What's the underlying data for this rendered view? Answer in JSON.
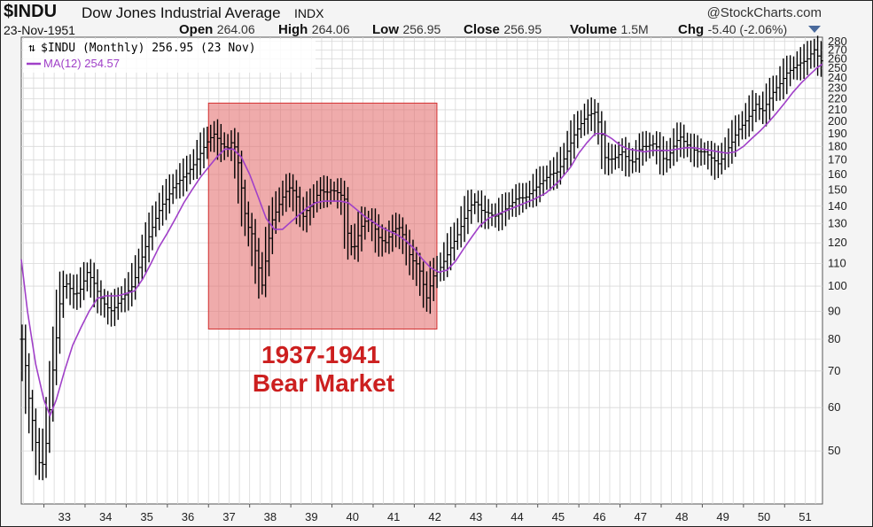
{
  "header": {
    "symbol": "$INDU",
    "name": "Dow Jones Industrial Average",
    "exchange": "INDX",
    "brand": "@StockCharts.com",
    "date": "23-Nov-1951",
    "quote": [
      {
        "label": "Open",
        "value": "264.06"
      },
      {
        "label": "High",
        "value": "264.06"
      },
      {
        "label": "Low",
        "value": "256.95"
      },
      {
        "label": "Close",
        "value": "256.95"
      },
      {
        "label": "Volume",
        "value": "1.5M"
      },
      {
        "label": "Chg",
        "value": "-5.40 (-2.06%)"
      }
    ]
  },
  "chart_data": {
    "type": "ohlc-bar",
    "scale": "log",
    "x_range": [
      1932.45,
      1951.92
    ],
    "ylim": [
      40,
      285
    ],
    "y_ticks": [
      50,
      60,
      70,
      80,
      90,
      100,
      110,
      120,
      130,
      140,
      150,
      160,
      170,
      180,
      190,
      200,
      210,
      220,
      230,
      240,
      250,
      260,
      270,
      280
    ],
    "x_ticks": [
      {
        "year": 1933,
        "label": "33"
      },
      {
        "year": 1934,
        "label": "34"
      },
      {
        "year": 1935,
        "label": "35"
      },
      {
        "year": 1936,
        "label": "36"
      },
      {
        "year": 1937,
        "label": "37"
      },
      {
        "year": 1938,
        "label": "38"
      },
      {
        "year": 1939,
        "label": "39"
      },
      {
        "year": 1940,
        "label": "40"
      },
      {
        "year": 1941,
        "label": "41"
      },
      {
        "year": 1942,
        "label": "42"
      },
      {
        "year": 1943,
        "label": "43"
      },
      {
        "year": 1944,
        "label": "44"
      },
      {
        "year": 1945,
        "label": "45"
      },
      {
        "year": 1946,
        "label": "46"
      },
      {
        "year": 1947,
        "label": "47"
      },
      {
        "year": 1948,
        "label": "48"
      },
      {
        "year": 1949,
        "label": "49"
      },
      {
        "year": 1950,
        "label": "50"
      },
      {
        "year": 1951,
        "label": "51"
      }
    ],
    "grid": true,
    "legend": "top-left",
    "series": [
      {
        "name": "$INDU (Monthly) 256.95 (23 Nov)",
        "color": "#000000",
        "kind": "price"
      },
      {
        "name": "MA(12) 254.57",
        "color": "#a040c8",
        "kind": "line"
      }
    ],
    "price_points": [
      [
        1932.5,
        80
      ],
      [
        1932.6,
        65
      ],
      [
        1932.8,
        52
      ],
      [
        1932.92,
        46
      ],
      [
        1933.0,
        48
      ],
      [
        1933.1,
        55
      ],
      [
        1933.2,
        68
      ],
      [
        1933.3,
        80
      ],
      [
        1933.4,
        95
      ],
      [
        1933.5,
        102
      ],
      [
        1933.6,
        100
      ],
      [
        1933.75,
        96
      ],
      [
        1933.9,
        99
      ],
      [
        1934.05,
        106
      ],
      [
        1934.2,
        102
      ],
      [
        1934.35,
        96
      ],
      [
        1934.5,
        92
      ],
      [
        1934.65,
        90
      ],
      [
        1934.8,
        93
      ],
      [
        1935.0,
        97
      ],
      [
        1935.15,
        100
      ],
      [
        1935.3,
        108
      ],
      [
        1935.5,
        120
      ],
      [
        1935.7,
        132
      ],
      [
        1935.85,
        140
      ],
      [
        1936.0,
        145
      ],
      [
        1936.15,
        152
      ],
      [
        1936.3,
        156
      ],
      [
        1936.45,
        160
      ],
      [
        1936.6,
        165
      ],
      [
        1936.75,
        172
      ],
      [
        1936.9,
        180
      ],
      [
        1937.0,
        185
      ],
      [
        1937.15,
        190
      ],
      [
        1937.3,
        182
      ],
      [
        1937.45,
        178
      ],
      [
        1937.6,
        185
      ],
      [
        1937.72,
        168
      ],
      [
        1937.82,
        148
      ],
      [
        1937.92,
        130
      ],
      [
        1938.05,
        125
      ],
      [
        1938.2,
        110
      ],
      [
        1938.3,
        100
      ],
      [
        1938.45,
        120
      ],
      [
        1938.55,
        132
      ],
      [
        1938.7,
        140
      ],
      [
        1938.85,
        148
      ],
      [
        1939.0,
        152
      ],
      [
        1939.15,
        145
      ],
      [
        1939.25,
        132
      ],
      [
        1939.4,
        138
      ],
      [
        1939.55,
        142
      ],
      [
        1939.7,
        150
      ],
      [
        1939.85,
        148
      ],
      [
        1940.0,
        150
      ],
      [
        1940.15,
        148
      ],
      [
        1940.3,
        145
      ],
      [
        1940.42,
        118
      ],
      [
        1940.55,
        118
      ],
      [
        1940.7,
        128
      ],
      [
        1940.85,
        133
      ],
      [
        1941.0,
        130
      ],
      [
        1941.15,
        122
      ],
      [
        1941.3,
        120
      ],
      [
        1941.5,
        127
      ],
      [
        1941.65,
        128
      ],
      [
        1941.8,
        120
      ],
      [
        1941.92,
        112
      ],
      [
        1942.05,
        110
      ],
      [
        1942.15,
        106
      ],
      [
        1942.3,
        95
      ],
      [
        1942.45,
        104
      ],
      [
        1942.6,
        107
      ],
      [
        1942.75,
        112
      ],
      [
        1942.9,
        118
      ],
      [
        1943.05,
        124
      ],
      [
        1943.2,
        132
      ],
      [
        1943.35,
        140
      ],
      [
        1943.5,
        143
      ],
      [
        1943.65,
        137
      ],
      [
        1943.8,
        136
      ],
      [
        1943.95,
        134
      ],
      [
        1944.1,
        136
      ],
      [
        1944.3,
        140
      ],
      [
        1944.5,
        145
      ],
      [
        1944.7,
        145
      ],
      [
        1944.9,
        150
      ],
      [
        1945.1,
        155
      ],
      [
        1945.3,
        160
      ],
      [
        1945.5,
        162
      ],
      [
        1945.7,
        175
      ],
      [
        1945.9,
        190
      ],
      [
        1946.05,
        198
      ],
      [
        1946.2,
        205
      ],
      [
        1946.4,
        208
      ],
      [
        1946.55,
        190
      ],
      [
        1946.62,
        172
      ],
      [
        1946.75,
        170
      ],
      [
        1946.9,
        172
      ],
      [
        1947.05,
        176
      ],
      [
        1947.2,
        170
      ],
      [
        1947.35,
        168
      ],
      [
        1947.5,
        180
      ],
      [
        1947.65,
        180
      ],
      [
        1947.8,
        182
      ],
      [
        1947.95,
        178
      ],
      [
        1948.1,
        168
      ],
      [
        1948.3,
        180
      ],
      [
        1948.45,
        188
      ],
      [
        1948.6,
        182
      ],
      [
        1948.75,
        178
      ],
      [
        1948.9,
        176
      ],
      [
        1949.05,
        176
      ],
      [
        1949.2,
        172
      ],
      [
        1949.4,
        167
      ],
      [
        1949.55,
        175
      ],
      [
        1949.7,
        182
      ],
      [
        1949.85,
        192
      ],
      [
        1950.0,
        198
      ],
      [
        1950.15,
        205
      ],
      [
        1950.3,
        215
      ],
      [
        1950.45,
        208
      ],
      [
        1950.6,
        218
      ],
      [
        1950.75,
        228
      ],
      [
        1950.9,
        235
      ],
      [
        1951.05,
        245
      ],
      [
        1951.2,
        250
      ],
      [
        1951.35,
        255
      ],
      [
        1951.5,
        258
      ],
      [
        1951.6,
        262
      ],
      [
        1951.7,
        272
      ],
      [
        1951.78,
        265
      ],
      [
        1951.88,
        258
      ]
    ],
    "ma_points": [
      [
        1932.45,
        112
      ],
      [
        1932.6,
        90
      ],
      [
        1932.8,
        72
      ],
      [
        1933.0,
        62
      ],
      [
        1933.15,
        58
      ],
      [
        1933.3,
        62
      ],
      [
        1933.5,
        70
      ],
      [
        1933.7,
        78
      ],
      [
        1933.9,
        84
      ],
      [
        1934.1,
        90
      ],
      [
        1934.3,
        95
      ],
      [
        1934.5,
        96
      ],
      [
        1934.8,
        96
      ],
      [
        1935.0,
        97
      ],
      [
        1935.2,
        98
      ],
      [
        1935.4,
        103
      ],
      [
        1935.6,
        110
      ],
      [
        1935.8,
        118
      ],
      [
        1936.0,
        125
      ],
      [
        1936.2,
        133
      ],
      [
        1936.4,
        142
      ],
      [
        1936.6,
        150
      ],
      [
        1936.8,
        158
      ],
      [
        1937.0,
        165
      ],
      [
        1937.2,
        172
      ],
      [
        1937.4,
        178
      ],
      [
        1937.6,
        178
      ],
      [
        1937.8,
        172
      ],
      [
        1938.0,
        160
      ],
      [
        1938.2,
        146
      ],
      [
        1938.4,
        133
      ],
      [
        1938.6,
        127
      ],
      [
        1938.8,
        127
      ],
      [
        1939.0,
        131
      ],
      [
        1939.2,
        135
      ],
      [
        1939.4,
        139
      ],
      [
        1939.6,
        142
      ],
      [
        1939.8,
        143
      ],
      [
        1940.0,
        143
      ],
      [
        1940.2,
        143
      ],
      [
        1940.4,
        142
      ],
      [
        1940.6,
        138
      ],
      [
        1940.8,
        134
      ],
      [
        1941.0,
        131
      ],
      [
        1941.2,
        128
      ],
      [
        1941.4,
        126
      ],
      [
        1941.6,
        124
      ],
      [
        1941.8,
        121
      ],
      [
        1942.0,
        117
      ],
      [
        1942.2,
        112
      ],
      [
        1942.4,
        108
      ],
      [
        1942.6,
        106
      ],
      [
        1942.8,
        107
      ],
      [
        1943.0,
        111
      ],
      [
        1943.2,
        117
      ],
      [
        1943.4,
        123
      ],
      [
        1943.6,
        129
      ],
      [
        1943.8,
        133
      ],
      [
        1944.0,
        135
      ],
      [
        1944.3,
        138
      ],
      [
        1944.6,
        141
      ],
      [
        1944.9,
        144
      ],
      [
        1945.2,
        148
      ],
      [
        1945.5,
        155
      ],
      [
        1945.8,
        165
      ],
      [
        1946.0,
        175
      ],
      [
        1946.2,
        183
      ],
      [
        1946.4,
        190
      ],
      [
        1946.6,
        190
      ],
      [
        1946.8,
        186
      ],
      [
        1947.0,
        181
      ],
      [
        1947.2,
        178
      ],
      [
        1947.4,
        177
      ],
      [
        1947.6,
        176
      ],
      [
        1947.8,
        177
      ],
      [
        1948.0,
        177
      ],
      [
        1948.2,
        177
      ],
      [
        1948.4,
        178
      ],
      [
        1948.6,
        179
      ],
      [
        1948.8,
        179
      ],
      [
        1949.0,
        178
      ],
      [
        1949.2,
        177
      ],
      [
        1949.4,
        176
      ],
      [
        1949.6,
        175
      ],
      [
        1949.8,
        176
      ],
      [
        1950.0,
        180
      ],
      [
        1950.2,
        186
      ],
      [
        1950.4,
        192
      ],
      [
        1950.6,
        199
      ],
      [
        1950.8,
        207
      ],
      [
        1951.0,
        216
      ],
      [
        1951.2,
        226
      ],
      [
        1951.4,
        235
      ],
      [
        1951.6,
        243
      ],
      [
        1951.8,
        251
      ],
      [
        1951.92,
        254.57
      ]
    ],
    "annotation": {
      "shaded_from_year": 1937.0,
      "shaded_to_year": 1942.55,
      "shaded_from_value": 83.5,
      "shaded_to_value": 216,
      "lines": [
        "1937-1941",
        "Bear Market"
      ],
      "color": "#e57373"
    }
  }
}
